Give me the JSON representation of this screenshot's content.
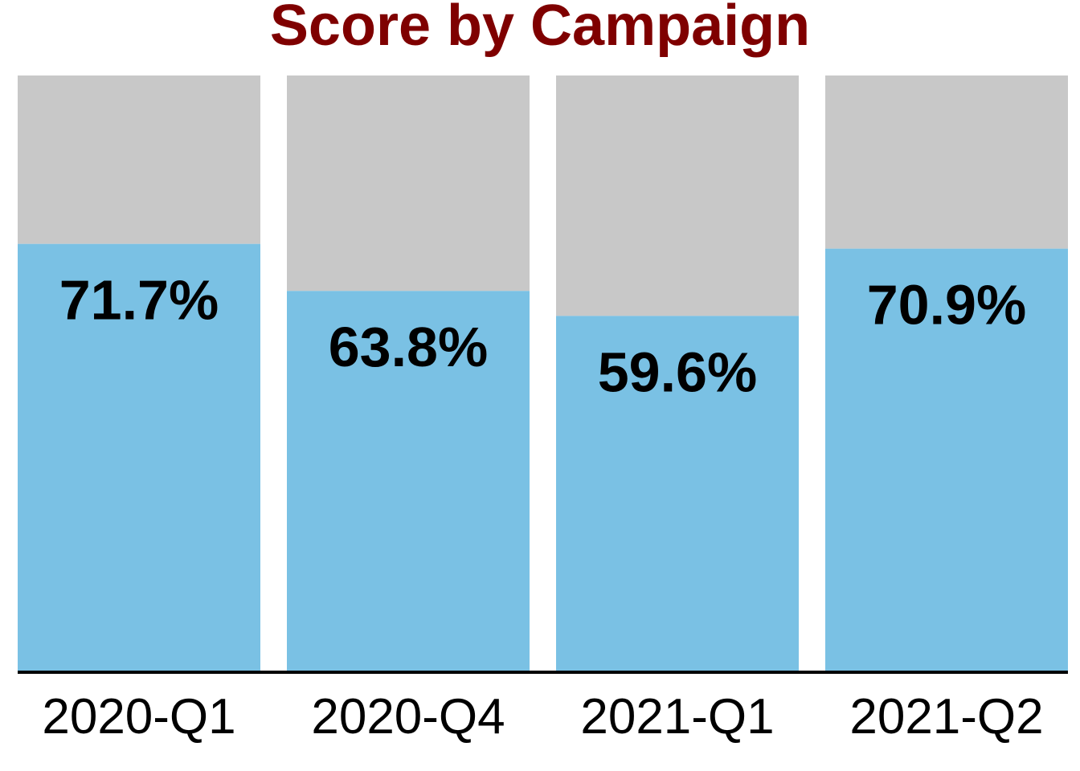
{
  "chart_data": {
    "type": "bar",
    "stacked_to_total": true,
    "title": "Score by Campaign",
    "categories": [
      "2020-Q1",
      "2020-Q4",
      "2021-Q1",
      "2021-Q2"
    ],
    "values": [
      71.7,
      63.8,
      59.6,
      70.9
    ],
    "value_labels": [
      "71.7%",
      "63.8%",
      "59.6%",
      "70.9%"
    ],
    "ylim": [
      0,
      100
    ],
    "grid": false,
    "legend": "none",
    "colors": {
      "title": "#7f0000",
      "value_fill": "#7ac1e4",
      "remainder_fill": "#c8c8c8",
      "axis": "#000000"
    }
  }
}
